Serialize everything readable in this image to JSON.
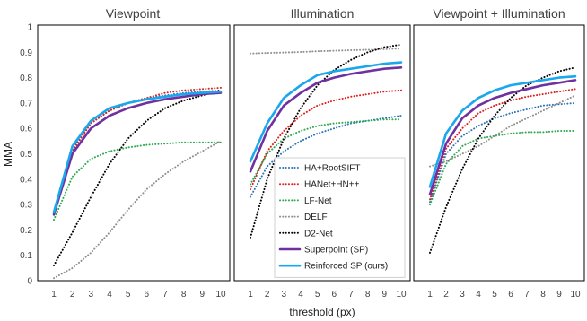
{
  "chart_data": [
    {
      "type": "line",
      "title": "Viewpoint",
      "x": [
        1,
        2,
        3,
        4,
        5,
        6,
        7,
        8,
        9,
        10
      ],
      "series": [
        {
          "name": "HA+RootSIFT",
          "color": "#2E75B6",
          "style": "dotted",
          "values": [
            0.26,
            0.52,
            0.62,
            0.67,
            0.7,
            0.72,
            0.73,
            0.74,
            0.745,
            0.75
          ]
        },
        {
          "name": "HANet+HN++",
          "color": "#E02020",
          "style": "dotted",
          "values": [
            0.27,
            0.51,
            0.62,
            0.67,
            0.7,
            0.72,
            0.74,
            0.75,
            0.755,
            0.76
          ]
        },
        {
          "name": "LF-Net",
          "color": "#2EAA50",
          "style": "dotted",
          "values": [
            0.24,
            0.41,
            0.48,
            0.51,
            0.525,
            0.535,
            0.54,
            0.545,
            0.545,
            0.545
          ]
        },
        {
          "name": "DELF",
          "color": "#909090",
          "style": "dotted",
          "values": [
            0.01,
            0.05,
            0.11,
            0.19,
            0.28,
            0.36,
            0.42,
            0.47,
            0.51,
            0.55
          ]
        },
        {
          "name": "D2-Net",
          "color": "#000000",
          "style": "dotted",
          "values": [
            0.06,
            0.19,
            0.33,
            0.46,
            0.56,
            0.63,
            0.68,
            0.71,
            0.73,
            0.75
          ]
        },
        {
          "name": "Superpoint (SP)",
          "color": "#7030A0",
          "style": "solid",
          "values": [
            0.26,
            0.5,
            0.6,
            0.65,
            0.68,
            0.7,
            0.715,
            0.725,
            0.735,
            0.74
          ]
        },
        {
          "name": "Reinforced SP (ours)",
          "color": "#1AA7EC",
          "style": "solid",
          "values": [
            0.27,
            0.53,
            0.63,
            0.68,
            0.7,
            0.715,
            0.725,
            0.735,
            0.74,
            0.745
          ]
        }
      ],
      "xlabel": "",
      "ylabel": "MMA",
      "xlim": [
        1,
        10
      ],
      "ylim": [
        0,
        1
      ],
      "yticks": [
        "0",
        "0.1",
        "0.2",
        "0.3",
        "0.4",
        "0.5",
        "0.6",
        "0.7",
        "0.8",
        "0.9",
        "1"
      ],
      "xticks": [
        "1",
        "2",
        "3",
        "4",
        "5",
        "6",
        "7",
        "8",
        "9",
        "10"
      ]
    },
    {
      "type": "line",
      "title": "Illumination",
      "x": [
        1,
        2,
        3,
        4,
        5,
        6,
        7,
        8,
        9,
        10
      ],
      "series": [
        {
          "name": "HA+RootSIFT",
          "color": "#2E75B6",
          "style": "dotted",
          "values": [
            0.33,
            0.45,
            0.51,
            0.55,
            0.58,
            0.6,
            0.62,
            0.63,
            0.64,
            0.65
          ]
        },
        {
          "name": "HANet+HN++",
          "color": "#E02020",
          "style": "dotted",
          "values": [
            0.36,
            0.51,
            0.59,
            0.65,
            0.69,
            0.71,
            0.725,
            0.735,
            0.745,
            0.75
          ]
        },
        {
          "name": "LF-Net",
          "color": "#2EAA50",
          "style": "dotted",
          "values": [
            0.38,
            0.5,
            0.56,
            0.59,
            0.61,
            0.62,
            0.625,
            0.63,
            0.635,
            0.635
          ]
        },
        {
          "name": "DELF",
          "color": "#909090",
          "style": "dotted",
          "values": [
            0.895,
            0.897,
            0.899,
            0.901,
            0.904,
            0.906,
            0.908,
            0.91,
            0.912,
            0.915
          ]
        },
        {
          "name": "D2-Net",
          "color": "#000000",
          "style": "dotted",
          "values": [
            0.17,
            0.4,
            0.56,
            0.68,
            0.77,
            0.83,
            0.87,
            0.9,
            0.92,
            0.93
          ]
        },
        {
          "name": "Superpoint (SP)",
          "color": "#7030A0",
          "style": "solid",
          "values": [
            0.43,
            0.59,
            0.69,
            0.74,
            0.78,
            0.8,
            0.815,
            0.825,
            0.835,
            0.84
          ]
        },
        {
          "name": "Reinforced SP (ours)",
          "color": "#1AA7EC",
          "style": "solid",
          "values": [
            0.47,
            0.62,
            0.72,
            0.77,
            0.81,
            0.825,
            0.835,
            0.845,
            0.855,
            0.86
          ]
        }
      ],
      "xlabel": "threshold (px)",
      "ylabel": "",
      "xlim": [
        1,
        10
      ],
      "ylim": [
        0,
        1
      ],
      "xticks": [
        "1",
        "2",
        "3",
        "4",
        "5",
        "6",
        "7",
        "8",
        "9",
        "10"
      ]
    },
    {
      "type": "line",
      "title": "Viewpoint + Illumination",
      "x": [
        1,
        2,
        3,
        4,
        5,
        6,
        7,
        8,
        9,
        10
      ],
      "series": [
        {
          "name": "HA+RootSIFT",
          "color": "#2E75B6",
          "style": "dotted",
          "values": [
            0.31,
            0.5,
            0.57,
            0.61,
            0.64,
            0.66,
            0.675,
            0.69,
            0.695,
            0.7
          ]
        },
        {
          "name": "HANet+HN++",
          "color": "#E02020",
          "style": "dotted",
          "values": [
            0.32,
            0.52,
            0.6,
            0.66,
            0.69,
            0.71,
            0.725,
            0.735,
            0.745,
            0.755
          ]
        },
        {
          "name": "LF-Net",
          "color": "#2EAA50",
          "style": "dotted",
          "values": [
            0.3,
            0.46,
            0.53,
            0.56,
            0.57,
            0.58,
            0.585,
            0.585,
            0.59,
            0.59
          ]
        },
        {
          "name": "DELF",
          "color": "#909090",
          "style": "dotted",
          "values": [
            0.45,
            0.47,
            0.5,
            0.53,
            0.57,
            0.61,
            0.64,
            0.67,
            0.7,
            0.73
          ]
        },
        {
          "name": "D2-Net",
          "color": "#000000",
          "style": "dotted",
          "values": [
            0.11,
            0.29,
            0.44,
            0.56,
            0.65,
            0.72,
            0.77,
            0.8,
            0.825,
            0.84
          ]
        },
        {
          "name": "Superpoint (SP)",
          "color": "#7030A0",
          "style": "solid",
          "values": [
            0.34,
            0.54,
            0.64,
            0.69,
            0.72,
            0.74,
            0.755,
            0.77,
            0.78,
            0.79
          ]
        },
        {
          "name": "Reinforced SP (ours)",
          "color": "#1AA7EC",
          "style": "solid",
          "values": [
            0.37,
            0.58,
            0.67,
            0.72,
            0.75,
            0.77,
            0.78,
            0.79,
            0.8,
            0.805
          ]
        }
      ],
      "xlabel": "",
      "ylabel": "",
      "xlim": [
        1,
        10
      ],
      "ylim": [
        0,
        1
      ],
      "xticks": [
        "1",
        "2",
        "3",
        "4",
        "5",
        "6",
        "7",
        "8",
        "9",
        "10"
      ]
    }
  ],
  "legend": {
    "placement": "inside-middle-panel-bottom-right",
    "entries": [
      "HA+RootSIFT",
      "HANet+HN++",
      "LF-Net",
      "DELF",
      "D2-Net",
      "Superpoint (SP)",
      "Reinforced SP (ours)"
    ]
  }
}
